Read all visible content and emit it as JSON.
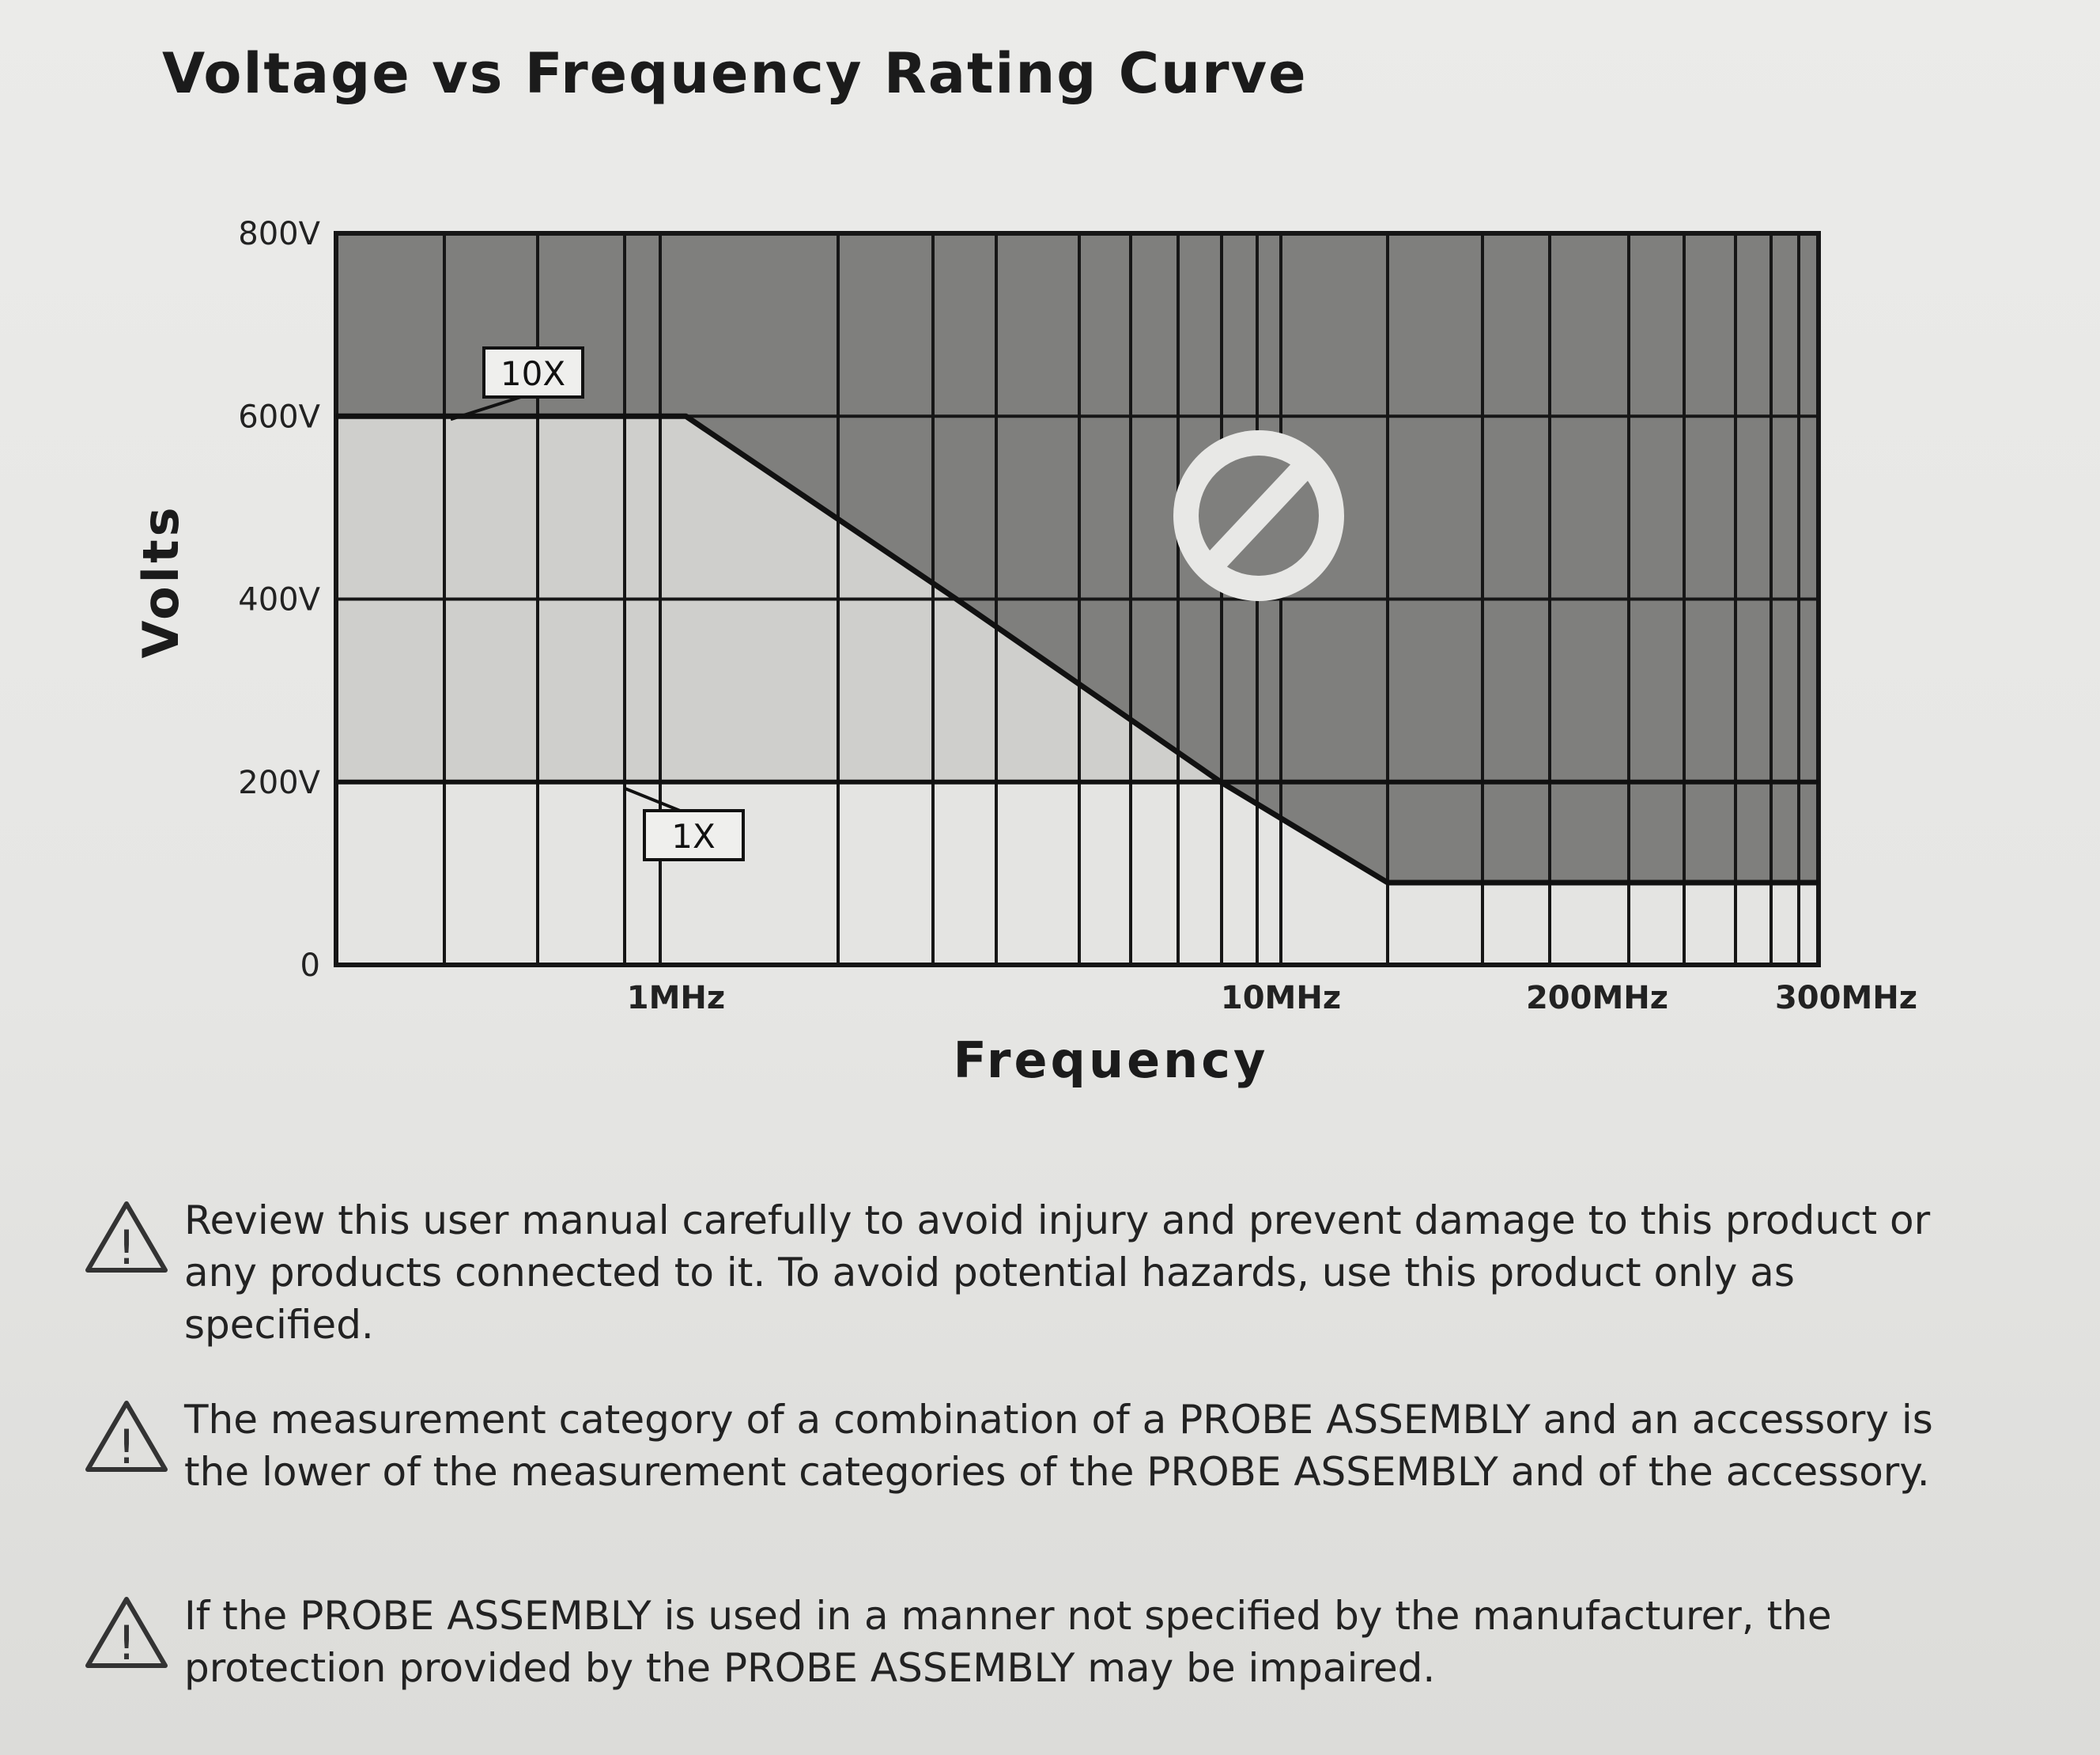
{
  "title": "Voltage vs Frequency Rating Curve",
  "chart_data": {
    "type": "line",
    "ylabel": "Volts",
    "xlabel": "Frequency",
    "y_ticks": [
      {
        "value": 0,
        "label": "0"
      },
      {
        "value": 200,
        "label": "200V"
      },
      {
        "value": 400,
        "label": "400V"
      },
      {
        "value": 600,
        "label": "600V"
      },
      {
        "value": 800,
        "label": "800V"
      }
    ],
    "x_ticks": [
      "1MHz",
      "10MHz",
      "200MHz",
      "300MHz"
    ],
    "ylim": [
      0,
      800
    ],
    "x_scale": "nonuniform",
    "series": [
      {
        "name": "10X",
        "points": [
          {
            "x": "0",
            "y": 600
          },
          {
            "x": "1.1MHz",
            "y": 600
          },
          {
            "x": "3MHz",
            "y": 400
          },
          {
            "x": "8MHz",
            "y": 200
          },
          {
            "x": "20MHz",
            "y": 90
          },
          {
            "x": "300MHz",
            "y": 90
          }
        ]
      },
      {
        "name": "1X",
        "points": [
          {
            "x": "0",
            "y": 200
          },
          {
            "x": "300MHz",
            "y": 200
          }
        ]
      }
    ],
    "regions": [
      "allowed (light)",
      "not allowed (dark)"
    ],
    "annotations": [
      "prohibited-symbol in dark region"
    ],
    "grid": true,
    "colors": {
      "allowed": "#cfcfcc",
      "below1x": "#e4e4e2",
      "forbidden": "#7f7f7d",
      "lines": "#161616"
    }
  },
  "warnings": [
    {
      "icon": "warning-triangle-icon",
      "text": "Review this user manual carefully to avoid injury and prevent damage to this product or any products connected to it. To avoid potential hazards, use this product only as specified."
    },
    {
      "icon": "warning-triangle-icon",
      "text": "The measurement category of a combination of a PROBE ASSEMBLY and an accessory is the lower of the measurement categories of the PROBE ASSEMBLY and of the accessory."
    },
    {
      "icon": "warning-triangle-icon",
      "text": "If the PROBE ASSEMBLY is used in a manner not specified by the manufacturer, the protection provided by the PROBE ASSEMBLY may be impaired."
    }
  ]
}
